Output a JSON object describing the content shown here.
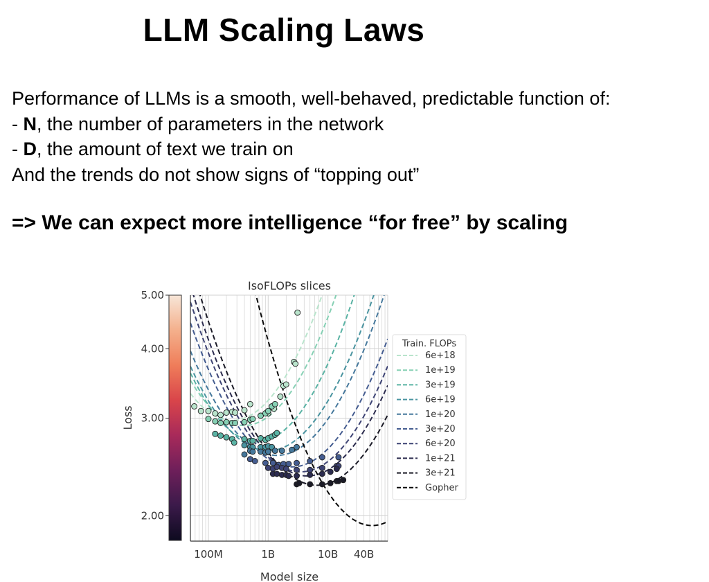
{
  "slide": {
    "title": "LLM Scaling Laws",
    "intro": "Performance of LLMs is a smooth, well-behaved, predictable function of:",
    "bullets": [
      {
        "prefix": "- ",
        "bold": "N",
        "text": ", the number of parameters in the network"
      },
      {
        "prefix": "- ",
        "bold": "D",
        "text": ", the amount of text we train on"
      }
    ],
    "trend_note": "And the trends do not show signs of “topping out”",
    "conclusion": "=> We can expect more intelligence “for free” by scaling"
  },
  "chart_data": {
    "type": "scatter",
    "title": "IsoFLOPs slices",
    "xlabel": "Model size",
    "ylabel": "Loss",
    "xscale": "log",
    "yscale": "log",
    "xlim": [
      50000000,
      100000000000
    ],
    "ylim": [
      1.8,
      5.0
    ],
    "xticks": [
      {
        "value": 100000000,
        "label": "100M"
      },
      {
        "value": 1000000000,
        "label": "1B"
      },
      {
        "value": 10000000000,
        "label": "10B"
      },
      {
        "value": 40000000000,
        "label": "40B"
      }
    ],
    "yticks": [
      {
        "value": 2.0,
        "label": "2.00"
      },
      {
        "value": 3.0,
        "label": "3.00"
      },
      {
        "value": 4.0,
        "label": "4.00"
      },
      {
        "value": 5.0,
        "label": "5.00"
      }
    ],
    "colorbar": {
      "min": 1.8,
      "max": 5.0,
      "colors": [
        "#0d0a1f",
        "#3b1a4a",
        "#6e1f5a",
        "#a82a5a",
        "#d9454a",
        "#ef7d5a",
        "#f4b08c",
        "#f7e6d8"
      ]
    },
    "grid": true,
    "legend": {
      "title": "Train. FLOPs",
      "position": "right",
      "entries": [
        {
          "label": "6e+18",
          "color": "#b9e4cc"
        },
        {
          "label": "1e+19",
          "color": "#86d0b4"
        },
        {
          "label": "3e+19",
          "color": "#5ab3a4"
        },
        {
          "label": "6e+19",
          "color": "#4a94a0"
        },
        {
          "label": "1e+20",
          "color": "#45789c"
        },
        {
          "label": "3e+20",
          "color": "#445c90"
        },
        {
          "label": "6e+20",
          "color": "#3d4374"
        },
        {
          "label": "1e+21",
          "color": "#2b2b4e"
        },
        {
          "label": "3e+21",
          "color": "#1a1a26"
        },
        {
          "label": "Gopher",
          "color": "#0a0a0a"
        }
      ]
    },
    "series": [
      {
        "name": "6e+18",
        "fit": {
          "min_x": 250000000,
          "min_loss": 2.97,
          "curv": 0.1
        },
        "points": [
          [
            58000000,
            3.15
          ],
          [
            75000000,
            3.09
          ],
          [
            100000000,
            3.09
          ],
          [
            130000000,
            3.06
          ],
          [
            160000000,
            3.04
          ],
          [
            200000000,
            3.07
          ],
          [
            250000000,
            3.08
          ],
          [
            280000000,
            3.07
          ],
          [
            400000000,
            3.1
          ],
          [
            500000000,
            3.18
          ],
          [
            750000000,
            3.03
          ],
          [
            1000000000,
            3.06
          ],
          [
            1250000000,
            3.12
          ],
          [
            1600000000,
            3.28
          ],
          [
            1800000000,
            3.43
          ],
          [
            2000000000,
            3.45
          ],
          [
            2700000000,
            3.79
          ],
          [
            2850000000,
            3.76
          ],
          [
            3100000000,
            4.65
          ]
        ]
      },
      {
        "name": "1e+19",
        "fit": {
          "min_x": 400000000,
          "min_loss": 2.91,
          "curv": 0.1
        },
        "points": [
          [
            100000000,
            2.99
          ],
          [
            130000000,
            2.96
          ],
          [
            160000000,
            2.94
          ],
          [
            200000000,
            2.95
          ],
          [
            250000000,
            2.94
          ],
          [
            280000000,
            2.94
          ],
          [
            400000000,
            2.95
          ],
          [
            500000000,
            2.98
          ],
          [
            550000000,
            2.99
          ],
          [
            750000000,
            3.03
          ],
          [
            900000000,
            3.06
          ],
          [
            1000000000,
            3.09
          ],
          [
            1150000000,
            3.15
          ],
          [
            1300000000,
            3.18
          ]
        ]
      },
      {
        "name": "3e+19",
        "fit": {
          "min_x": 650000000,
          "min_loss": 2.72,
          "curv": 0.1
        },
        "points": [
          [
            130000000,
            2.81
          ],
          [
            160000000,
            2.79
          ],
          [
            200000000,
            2.77
          ],
          [
            250000000,
            2.75
          ],
          [
            270000000,
            2.71
          ],
          [
            400000000,
            2.75
          ],
          [
            500000000,
            2.73
          ],
          [
            550000000,
            2.73
          ],
          [
            750000000,
            2.76
          ],
          [
            900000000,
            2.74
          ],
          [
            1000000000,
            2.76
          ],
          [
            1150000000,
            2.78
          ],
          [
            1300000000,
            2.8
          ],
          [
            1400000000,
            2.82
          ]
        ]
      },
      {
        "name": "6e+19",
        "fit": {
          "min_x": 1000000000,
          "min_loss": 2.62,
          "curv": 0.09
        },
        "points": [
          [
            400000000,
            2.68
          ],
          [
            500000000,
            2.66
          ],
          [
            550000000,
            2.66
          ],
          [
            750000000,
            2.66
          ],
          [
            900000000,
            2.66
          ],
          [
            1000000000,
            2.67
          ],
          [
            1150000000,
            2.66
          ]
        ]
      },
      {
        "name": "1e+20",
        "fit": {
          "min_x": 1400000000,
          "min_loss": 2.57,
          "curv": 0.09
        },
        "points": [
          [
            400000000,
            2.58
          ],
          [
            500000000,
            2.62
          ],
          [
            550000000,
            2.61
          ],
          [
            750000000,
            2.61
          ],
          [
            900000000,
            2.6
          ],
          [
            1000000000,
            2.61
          ],
          [
            1300000000,
            2.62
          ],
          [
            1700000000,
            2.62
          ],
          [
            2500000000,
            2.63
          ],
          [
            3000000000,
            2.66
          ]
        ]
      },
      {
        "name": "3e+20",
        "fit": {
          "min_x": 2500000000,
          "min_loss": 2.45,
          "curv": 0.09
        },
        "points": [
          [
            500000000,
            2.53
          ],
          [
            600000000,
            2.51
          ],
          [
            900000000,
            2.49
          ],
          [
            1200000000,
            2.49
          ],
          [
            1500000000,
            2.47
          ],
          [
            1800000000,
            2.48
          ],
          [
            2200000000,
            2.48
          ],
          [
            3000000000,
            2.49
          ],
          [
            5000000000,
            2.51
          ],
          [
            8000000000,
            2.55
          ],
          [
            15000000000,
            2.55
          ]
        ]
      },
      {
        "name": "6e+20",
        "fit": {
          "min_x": 3500000000,
          "min_loss": 2.4,
          "curv": 0.09
        },
        "points": [
          [
            1000000000,
            2.44
          ],
          [
            1200000000,
            2.43
          ],
          [
            1400000000,
            2.45
          ],
          [
            1700000000,
            2.44
          ],
          [
            2000000000,
            2.43
          ],
          [
            3000000000,
            2.42
          ],
          [
            5000000000,
            2.42
          ],
          [
            8000000000,
            2.44
          ],
          [
            14000000000,
            2.46
          ],
          [
            15000000000,
            2.46
          ]
        ]
      },
      {
        "name": "1e+21",
        "fit": {
          "min_x": 4500000000,
          "min_loss": 2.36,
          "curv": 0.09
        },
        "points": [
          [
            1200000000,
            2.38
          ],
          [
            1400000000,
            2.38
          ],
          [
            1700000000,
            2.37
          ],
          [
            2000000000,
            2.37
          ],
          [
            2200000000,
            2.36
          ],
          [
            3000000000,
            2.36
          ],
          [
            5000000000,
            2.37
          ],
          [
            8000000000,
            2.38
          ],
          [
            11000000000,
            2.4
          ],
          [
            14000000000,
            2.43
          ]
        ]
      },
      {
        "name": "3e+21",
        "fit": {
          "min_x": 6500000000,
          "min_loss": 2.27,
          "curv": 0.09
        },
        "points": [
          [
            3000000000,
            2.28
          ],
          [
            3300000000,
            2.29
          ],
          [
            5000000000,
            2.28
          ],
          [
            8000000000,
            2.28
          ],
          [
            11000000000,
            2.29
          ],
          [
            14000000000,
            2.31
          ],
          [
            15000000000,
            2.31
          ],
          [
            18000000000,
            2.32
          ]
        ]
      },
      {
        "name": "Gopher",
        "fit": {
          "min_x": 55000000000,
          "min_loss": 1.92,
          "curv": 0.11
        },
        "points": []
      }
    ]
  }
}
